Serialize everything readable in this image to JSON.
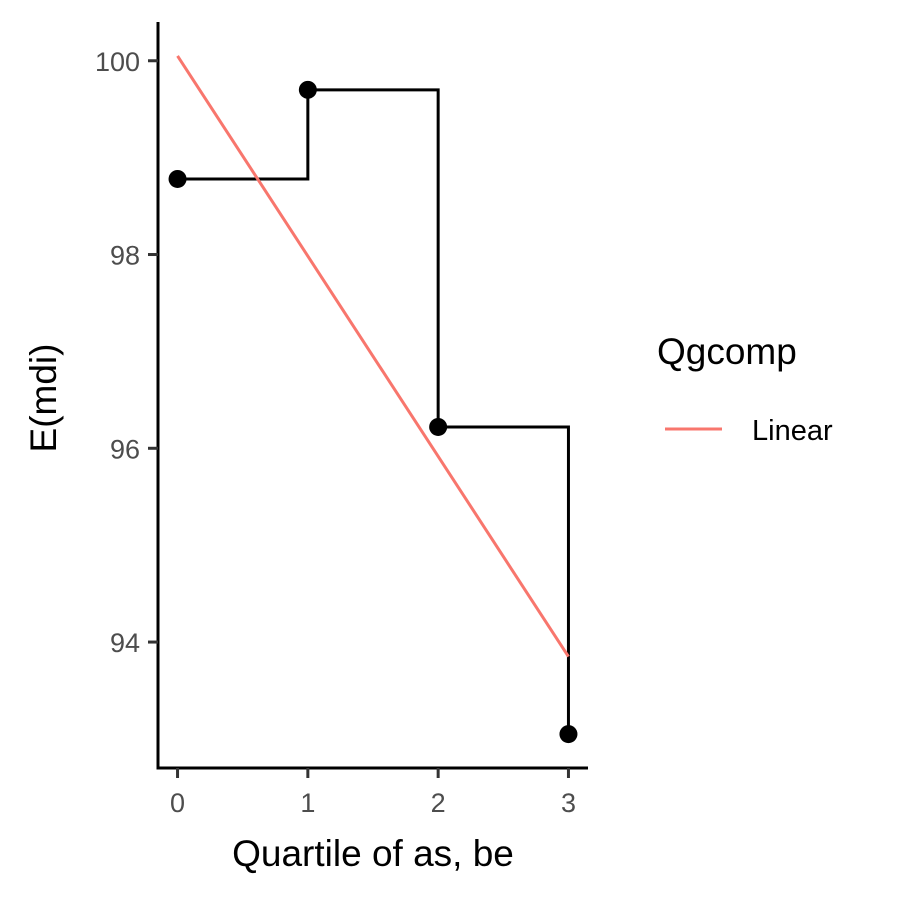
{
  "chart_data": {
    "type": "line",
    "xlabel": "Quartile of as, be",
    "ylabel": "E(mdi)",
    "x_ticks": [
      0,
      1,
      2,
      3
    ],
    "y_ticks": [
      94,
      96,
      98,
      100
    ],
    "xlim": [
      -0.15,
      3.15
    ],
    "ylim": [
      92.7,
      100.4
    ],
    "series": [
      {
        "kind": "step-with-points",
        "color": "#000000",
        "x": [
          0,
          1,
          2,
          3
        ],
        "y": [
          98.78,
          99.7,
          96.22,
          93.05
        ]
      },
      {
        "name": "Linear",
        "kind": "line",
        "color": "#F8766D",
        "x": [
          0,
          3
        ],
        "y": [
          100.05,
          93.85
        ]
      }
    ],
    "legend": {
      "title": "Qgcomp",
      "position": "right",
      "entries": [
        {
          "label": "Linear",
          "color": "#F8766D"
        }
      ]
    }
  }
}
